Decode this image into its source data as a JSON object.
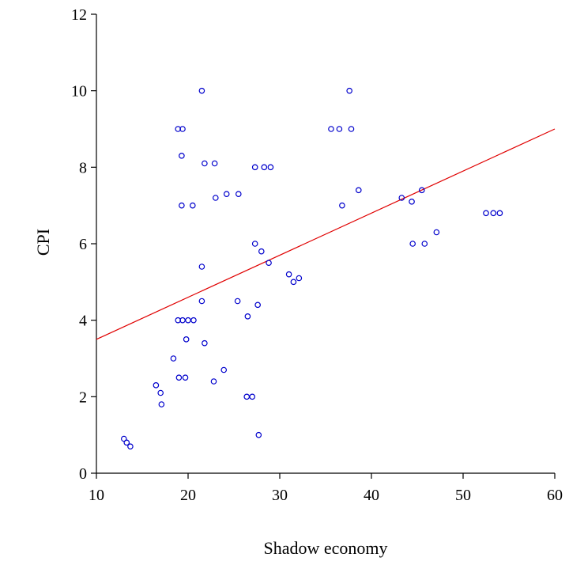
{
  "chart_data": {
    "type": "scatter",
    "title": "",
    "xlabel": "Shadow economy",
    "ylabel": "CPI",
    "xlim": [
      10,
      60
    ],
    "ylim": [
      0,
      12
    ],
    "xticks": [
      10,
      20,
      30,
      40,
      50,
      60
    ],
    "yticks": [
      0,
      2,
      4,
      6,
      8,
      10,
      12
    ],
    "grid": false,
    "legend": "none",
    "point_color": "#0000cc",
    "line_color": "#e00000",
    "fit_line": {
      "x": [
        10,
        60
      ],
      "y": [
        3.5,
        9.0
      ]
    },
    "points": [
      [
        13.0,
        0.9
      ],
      [
        13.3,
        0.8
      ],
      [
        13.7,
        0.7
      ],
      [
        16.5,
        2.3
      ],
      [
        17.0,
        2.1
      ],
      [
        17.1,
        1.8
      ],
      [
        18.4,
        3.0
      ],
      [
        18.9,
        4.0
      ],
      [
        19.4,
        4.0
      ],
      [
        20.0,
        4.0
      ],
      [
        20.6,
        4.0
      ],
      [
        19.0,
        2.5
      ],
      [
        19.7,
        2.5
      ],
      [
        19.8,
        3.5
      ],
      [
        18.9,
        9.0
      ],
      [
        19.4,
        9.0
      ],
      [
        19.3,
        8.3
      ],
      [
        19.3,
        7.0
      ],
      [
        20.5,
        7.0
      ],
      [
        21.5,
        10.0
      ],
      [
        21.8,
        8.1
      ],
      [
        22.9,
        8.1
      ],
      [
        23.0,
        7.2
      ],
      [
        24.2,
        7.3
      ],
      [
        25.5,
        7.3
      ],
      [
        21.5,
        5.4
      ],
      [
        21.5,
        4.5
      ],
      [
        21.8,
        3.4
      ],
      [
        22.8,
        2.4
      ],
      [
        23.9,
        2.7
      ],
      [
        25.4,
        4.5
      ],
      [
        26.5,
        4.1
      ],
      [
        27.6,
        4.4
      ],
      [
        26.4,
        2.0
      ],
      [
        27.0,
        2.0
      ],
      [
        27.7,
        1.0
      ],
      [
        27.3,
        8.0
      ],
      [
        28.3,
        8.0
      ],
      [
        29.0,
        8.0
      ],
      [
        27.3,
        6.0
      ],
      [
        28.0,
        5.8
      ],
      [
        28.8,
        5.5
      ],
      [
        31.0,
        5.2
      ],
      [
        31.5,
        5.0
      ],
      [
        32.1,
        5.1
      ],
      [
        35.6,
        9.0
      ],
      [
        36.5,
        9.0
      ],
      [
        37.8,
        9.0
      ],
      [
        37.6,
        10.0
      ],
      [
        36.8,
        7.0
      ],
      [
        38.6,
        7.4
      ],
      [
        43.3,
        7.2
      ],
      [
        44.4,
        7.1
      ],
      [
        45.5,
        7.4
      ],
      [
        44.5,
        6.0
      ],
      [
        45.8,
        6.0
      ],
      [
        47.1,
        6.3
      ],
      [
        52.5,
        6.8
      ],
      [
        53.3,
        6.8
      ],
      [
        54.0,
        6.8
      ]
    ]
  }
}
